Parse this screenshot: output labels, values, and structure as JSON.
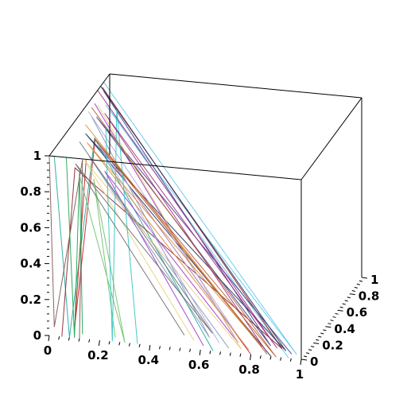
{
  "chart_data": {
    "type": "line",
    "projection": "3d-box",
    "title": "",
    "xlabel": "",
    "ylabel": "",
    "zlabel": "",
    "xlim": [
      0,
      1
    ],
    "ylim": [
      0,
      1
    ],
    "zlim": [
      0,
      1
    ],
    "grid": false,
    "legend": "none",
    "x_ticks": [
      "0",
      "0.2",
      "0.4",
      "0.6",
      "0.8",
      "1"
    ],
    "y_ticks": [
      "0",
      "0.2",
      "0.4",
      "0.6",
      "0.8",
      "1"
    ],
    "z_ticks": [
      "0",
      "0.2",
      "0.4",
      "0.6",
      "0.8",
      "1"
    ],
    "palette": [
      "#1fa79a",
      "#2ec4c4",
      "#8b1f2a",
      "#c01c1c",
      "#7a5454",
      "#a033c8",
      "#3c3c8a",
      "#1e2f5c",
      "#7f95b8",
      "#e8d27a",
      "#b3a9d9",
      "#6fbf6f",
      "#16a34a",
      "#d98a3a",
      "#5ec7e8",
      "#9e2b7d",
      "#6b6b6b",
      "#b85c2e"
    ],
    "series": [
      {
        "color": "#1fa79a",
        "points": [
          [
            0.02,
            0.0,
            1.0
          ],
          [
            0.08,
            0.0,
            0.0
          ],
          [
            0.12,
            0.25,
            1.0
          ],
          [
            0.65,
            0.0,
            0.0
          ]
        ]
      },
      {
        "color": "#5ec7e8",
        "points": [
          [
            0.0,
            0.9,
            1.0
          ],
          [
            0.97,
            0.05,
            0.0
          ],
          [
            0.02,
            0.85,
            0.9
          ],
          [
            0.95,
            0.0,
            0.0
          ]
        ]
      },
      {
        "color": "#8b1f2a",
        "points": [
          [
            0.0,
            0.88,
            0.98
          ],
          [
            0.9,
            0.1,
            0.0
          ],
          [
            0.03,
            0.3,
            0.8
          ],
          [
            0.05,
            0.0,
            0.0
          ]
        ]
      },
      {
        "color": "#c01c1c",
        "points": [
          [
            0.05,
            0.4,
            0.8
          ],
          [
            0.1,
            0.0,
            0.05
          ],
          [
            0.05,
            0.55,
            0.85
          ],
          [
            0.8,
            0.0,
            0.0
          ]
        ]
      },
      {
        "color": "#7a5454",
        "points": [
          [
            0.0,
            0.0,
            1.0
          ],
          [
            0.02,
            0.0,
            0.05
          ],
          [
            0.06,
            0.3,
            0.85
          ],
          [
            0.12,
            0.0,
            0.0
          ]
        ]
      },
      {
        "color": "#a033c8",
        "points": [
          [
            0.0,
            0.75,
            0.95
          ],
          [
            0.72,
            0.12,
            0.0
          ],
          [
            0.1,
            0.5,
            0.7
          ],
          [
            0.6,
            0.05,
            0.0
          ]
        ]
      },
      {
        "color": "#3c3c8a",
        "points": [
          [
            0.0,
            0.9,
            0.95
          ],
          [
            0.85,
            0.12,
            0.0
          ],
          [
            0.02,
            0.7,
            0.9
          ],
          [
            0.95,
            0.05,
            0.0
          ]
        ]
      },
      {
        "color": "#1e2f5c",
        "points": [
          [
            0.0,
            0.85,
            1.0
          ],
          [
            0.92,
            0.08,
            0.0
          ],
          [
            0.0,
            0.6,
            0.85
          ],
          [
            0.88,
            0.0,
            0.0
          ]
        ]
      },
      {
        "color": "#7f95b8",
        "points": [
          [
            0.0,
            0.7,
            0.9
          ],
          [
            0.6,
            0.15,
            0.0
          ],
          [
            0.05,
            0.45,
            0.8
          ],
          [
            0.7,
            0.05,
            0.0
          ]
        ]
      },
      {
        "color": "#e8d27a",
        "points": [
          [
            0.0,
            0.8,
            0.92
          ],
          [
            0.75,
            0.05,
            0.0
          ],
          [
            0.02,
            0.5,
            0.75
          ],
          [
            0.55,
            0.1,
            0.0
          ]
        ]
      },
      {
        "color": "#b3a9d9",
        "points": [
          [
            0.0,
            0.65,
            0.95
          ],
          [
            0.7,
            0.2,
            0.0
          ],
          [
            0.05,
            0.6,
            0.8
          ],
          [
            0.65,
            0.1,
            0.0
          ]
        ]
      },
      {
        "color": "#6fbf6f",
        "points": [
          [
            0.05,
            0.3,
            0.75
          ],
          [
            0.3,
            0.0,
            0.0
          ],
          [
            0.08,
            0.4,
            0.7
          ],
          [
            0.25,
            0.05,
            0.0
          ]
        ]
      },
      {
        "color": "#16a34a",
        "points": [
          [
            0.02,
            0.2,
            0.9
          ],
          [
            0.1,
            0.0,
            0.0
          ],
          [
            0.06,
            0.25,
            0.8
          ],
          [
            0.12,
            0.05,
            0.0
          ]
        ]
      },
      {
        "color": "#d98a3a",
        "points": [
          [
            0.0,
            0.6,
            0.9
          ],
          [
            0.82,
            0.1,
            0.0
          ],
          [
            0.03,
            0.5,
            0.85
          ],
          [
            0.78,
            0.05,
            0.0
          ]
        ]
      },
      {
        "color": "#2ec4c4",
        "points": [
          [
            0.08,
            0.6,
            0.9
          ],
          [
            0.25,
            0.0,
            0.0
          ],
          [
            0.1,
            0.7,
            0.95
          ],
          [
            0.35,
            0.0,
            0.0
          ]
        ]
      },
      {
        "color": "#9e2b7d",
        "points": [
          [
            0.0,
            0.8,
            1.0
          ],
          [
            0.88,
            0.1,
            0.0
          ],
          [
            0.04,
            0.75,
            0.9
          ],
          [
            0.85,
            0.05,
            0.0
          ]
        ]
      },
      {
        "color": "#6b6b6b",
        "points": [
          [
            0.0,
            0.5,
            0.85
          ],
          [
            0.6,
            0.2,
            0.0
          ],
          [
            0.02,
            0.35,
            0.8
          ],
          [
            0.5,
            0.15,
            0.0
          ]
        ]
      },
      {
        "color": "#b85c2e",
        "points": [
          [
            0.0,
            0.7,
            0.95
          ],
          [
            0.9,
            0.0,
            0.0
          ],
          [
            0.05,
            0.55,
            0.85
          ],
          [
            0.86,
            0.02,
            0.0
          ]
        ]
      }
    ]
  }
}
